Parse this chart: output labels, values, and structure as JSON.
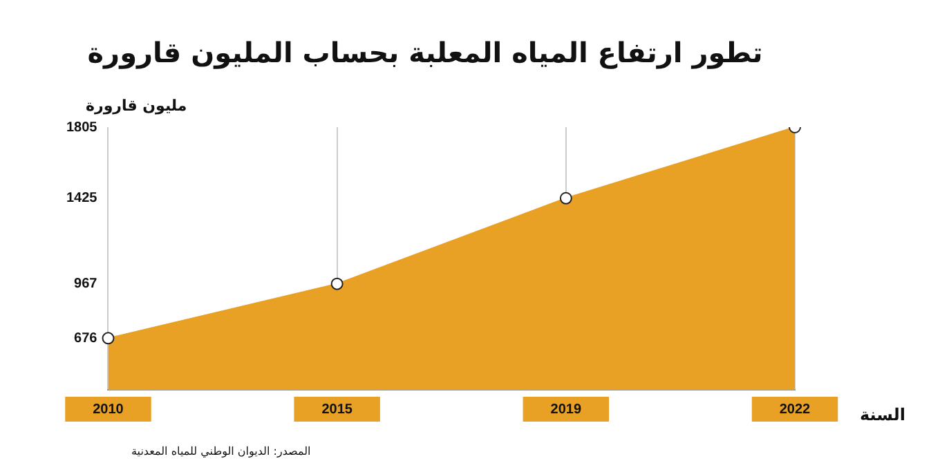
{
  "chart_data": {
    "type": "area",
    "title": "تطور ارتفاع المياه المعلبة بحساب المليون قارورة",
    "ylabel": "مليون قارورة",
    "xlabel": "السنة",
    "categories": [
      "2010",
      "2015",
      "2019",
      "2022"
    ],
    "values": [
      676,
      967,
      1425,
      1805
    ],
    "color": "#e8a025",
    "ylim": [
      400,
      1805
    ],
    "yticks": [
      676,
      967,
      1425,
      1805
    ],
    "grid": "x",
    "marker": "circle",
    "legend": false,
    "annotations": [
      "المصدر: الديوان الوطني للمياه المعدنية"
    ]
  }
}
